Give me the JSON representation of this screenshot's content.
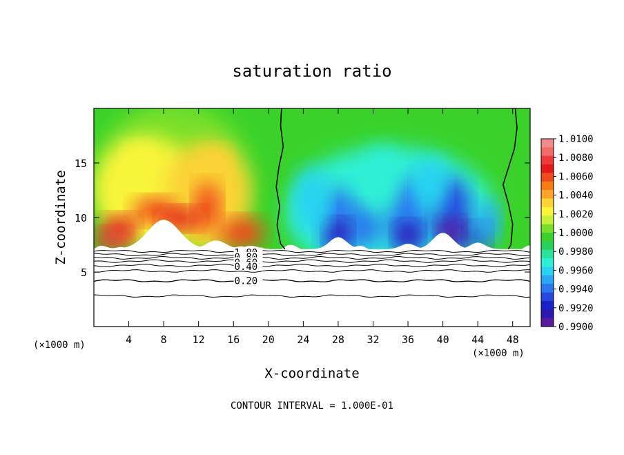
{
  "chart_data": {
    "type": "heatmap",
    "title": "saturation ratio",
    "xlabel": "X-coordinate",
    "ylabel": "Z-coordinate",
    "x_unit_left": "(×1000 m)",
    "x_unit_right": "(×1000 m)",
    "xlim": [
      0,
      50
    ],
    "ylim": [
      0,
      20
    ],
    "x_ticks": [
      4,
      8,
      12,
      16,
      20,
      24,
      28,
      32,
      36,
      40,
      44,
      48
    ],
    "y_ticks": [
      5,
      10,
      15
    ],
    "colorbar": {
      "min": 0.99,
      "max": 1.01,
      "labels": [
        "1.0100",
        "1.0080",
        "1.0060",
        "1.0040",
        "1.0020",
        "1.0000",
        "0.9980",
        "0.9960",
        "0.9940",
        "0.9920",
        "0.9900"
      ],
      "colors": [
        "#f08c8c",
        "#f46a6a",
        "#ee3a3a",
        "#e41a1a",
        "#ef4a1c",
        "#f97b14",
        "#fca42a",
        "#fbd334",
        "#f9f53a",
        "#c8f03a",
        "#78e02c",
        "#3ad22a",
        "#28d25a",
        "#2ae29c",
        "#2ef0d6",
        "#28d2f2",
        "#2aa6f4",
        "#2a78f0",
        "#2648e0",
        "#1a20c8",
        "#2a18b2",
        "#5a1a9c"
      ]
    },
    "contour_labels": [
      "1.00",
      "0.80",
      "0.60",
      "0.40",
      "0.20"
    ],
    "contour_label_y": [
      6.8,
      6.4,
      5.9,
      5.5,
      4.2
    ],
    "contour_levels_z": [
      6.9,
      6.6,
      6.3,
      6.0,
      5.6,
      5.1,
      4.2,
      2.8
    ],
    "ratio_one_lines": [
      {
        "points": [
          [
            21.5,
            20
          ],
          [
            21.4,
            18.4
          ],
          [
            21.7,
            16.5
          ],
          [
            21.2,
            14.6
          ],
          [
            20.9,
            12.8
          ],
          [
            21.3,
            11.0
          ],
          [
            21.0,
            9.3
          ],
          [
            21.4,
            7.6
          ],
          [
            21.9,
            7.1
          ]
        ]
      },
      {
        "points": [
          [
            48.3,
            20
          ],
          [
            48.5,
            18.2
          ],
          [
            48.2,
            16.3
          ],
          [
            47.6,
            14.8
          ],
          [
            46.9,
            13.0
          ],
          [
            47.5,
            11.3
          ],
          [
            48.0,
            9.4
          ],
          [
            47.8,
            7.5
          ],
          [
            47.5,
            7.1
          ]
        ]
      }
    ],
    "footer": "CONTOUR INTERVAL = 1.000E-01"
  }
}
